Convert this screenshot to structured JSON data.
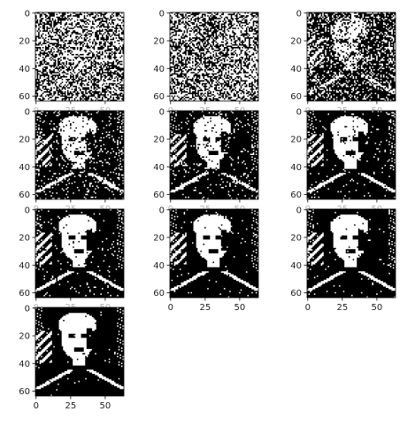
{
  "chart_data": {
    "type": "heatmap",
    "layout": {
      "rows": 4,
      "cols": 3
    },
    "colormap": [
      "#000000",
      "#ffffff"
    ],
    "grid": false,
    "image_size": [
      64,
      64
    ],
    "panels": [
      {
        "name": "panel-1",
        "xlim": [
          0,
          64
        ],
        "ylim": [
          64,
          0
        ],
        "xticks": [
          "0",
          "25",
          "50"
        ],
        "yticks": [
          "0",
          "20",
          "40",
          "60"
        ],
        "x_tick_labels_visible": false
      },
      {
        "name": "panel-2",
        "xlim": [
          0,
          64
        ],
        "ylim": [
          64,
          0
        ],
        "xticks": [
          "0",
          "25",
          "50"
        ],
        "yticks": [
          "0",
          "20",
          "40",
          "60"
        ],
        "x_tick_labels_visible": false
      },
      {
        "name": "panel-3",
        "xlim": [
          0,
          64
        ],
        "ylim": [
          64,
          0
        ],
        "xticks": [
          "0",
          "25",
          "50"
        ],
        "yticks": [
          "0",
          "20",
          "40",
          "60"
        ],
        "x_tick_labels_visible": false
      },
      {
        "name": "panel-4",
        "xlim": [
          0,
          64
        ],
        "ylim": [
          64,
          0
        ],
        "xticks": [
          "0",
          "25",
          "50"
        ],
        "yticks": [
          "0",
          "20",
          "40",
          "60"
        ],
        "x_tick_labels_visible": false
      },
      {
        "name": "panel-5",
        "xlim": [
          0,
          64
        ],
        "ylim": [
          64,
          0
        ],
        "xticks": [
          "0",
          "25",
          "50"
        ],
        "yticks": [
          "0",
          "20",
          "40",
          "60"
        ],
        "x_tick_labels_visible": false
      },
      {
        "name": "panel-6",
        "xlim": [
          0,
          64
        ],
        "ylim": [
          64,
          0
        ],
        "xticks": [
          "0",
          "25",
          "50"
        ],
        "yticks": [
          "0",
          "20",
          "40",
          "60"
        ],
        "x_tick_labels_visible": false
      },
      {
        "name": "panel-7",
        "xlim": [
          0,
          64
        ],
        "ylim": [
          64,
          0
        ],
        "xticks": [
          "0",
          "25",
          "50"
        ],
        "yticks": [
          "0",
          "20",
          "40",
          "60"
        ],
        "x_tick_labels_visible": false
      },
      {
        "name": "panel-8",
        "xlim": [
          0,
          64
        ],
        "ylim": [
          64,
          0
        ],
        "xticks": [
          "0",
          "25",
          "50"
        ],
        "yticks": [
          "0",
          "20",
          "40",
          "60"
        ],
        "x_tick_labels_visible": true
      },
      {
        "name": "panel-9",
        "xlim": [
          0,
          64
        ],
        "ylim": [
          64,
          0
        ],
        "xticks": [
          "0",
          "25",
          "50"
        ],
        "yticks": [
          "0",
          "20",
          "40",
          "60"
        ],
        "x_tick_labels_visible": true
      },
      {
        "name": "panel-10",
        "xlim": [
          0,
          64
        ],
        "ylim": [
          64,
          0
        ],
        "xticks": [
          "0",
          "25",
          "50"
        ],
        "yticks": [
          "0",
          "20",
          "40",
          "60"
        ],
        "x_tick_labels_visible": true
      }
    ],
    "noise_levels": [
      0.35,
      0.55,
      0.25,
      0.1,
      0.06,
      0.04,
      0.03,
      0.02,
      0.015,
      0.01
    ]
  }
}
